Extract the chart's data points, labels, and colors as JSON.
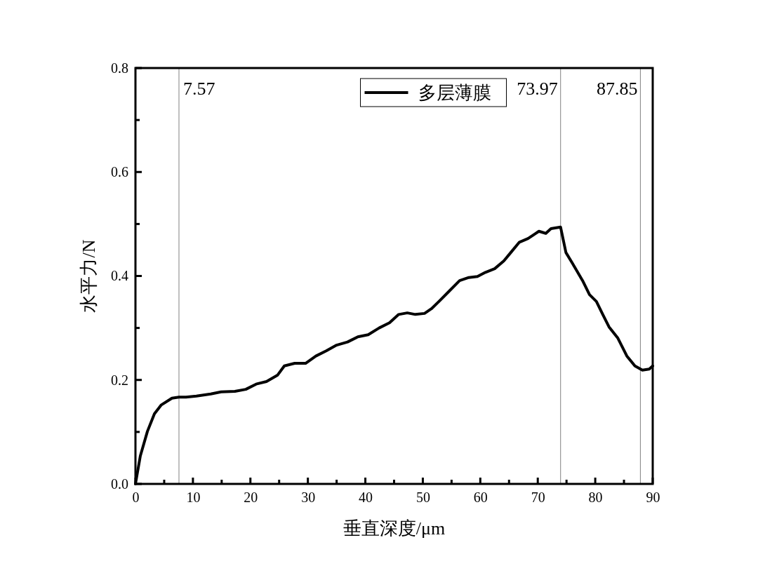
{
  "chart_data": {
    "type": "line",
    "xlabel": "垂直深度/μm",
    "ylabel": "水平力/N",
    "xlim": [
      0,
      90
    ],
    "ylim": [
      0,
      0.8
    ],
    "xticks": [
      0,
      {
        "value": 5,
        "label": null
      },
      10,
      {
        "value": 15,
        "label": null
      },
      20,
      {
        "value": 25,
        "label": null
      },
      30,
      {
        "value": 35,
        "label": null
      },
      40,
      {
        "value": 45,
        "label": null
      },
      50,
      {
        "value": 55,
        "label": null
      },
      60,
      {
        "value": 65,
        "label": null
      },
      70,
      {
        "value": 75,
        "label": null
      },
      80,
      {
        "value": 85,
        "label": null
      },
      90
    ],
    "yticks": [
      {
        "value": 0,
        "label": "0.0"
      },
      {
        "value": 0.1,
        "label": null
      },
      0.2,
      {
        "value": 0.3,
        "label": null
      },
      0.4,
      {
        "value": 0.5,
        "label": null
      },
      0.6,
      {
        "value": 0.7,
        "label": null
      },
      0.8
    ],
    "grid": false,
    "legend": "top",
    "line_style": "solid",
    "marker": "none",
    "x": [
      0,
      0.85,
      2.08,
      3.3,
      4.5,
      6.35,
      7.57,
      8.8,
      10.6,
      13.1,
      14.9,
      17.3,
      19.2,
      21.0,
      22.8,
      24.7,
      25.9,
      27.7,
      29.6,
      31.4,
      33.2,
      35.0,
      36.9,
      38.7,
      40.5,
      42.4,
      44.2,
      45.8,
      47.3,
      48.7,
      50.3,
      51.5,
      52.8,
      54.6,
      56.4,
      58.0,
      59.5,
      60.9,
      62.5,
      64.1,
      65.3,
      66.8,
      68.3,
      70.2,
      71.4,
      72.3,
      73.97,
      74.9,
      76.0,
      77.8,
      79.0,
      80.2,
      81.4,
      82.4,
      83.9,
      85.5,
      86.9,
      88.2,
      89.4,
      90
    ],
    "series": [
      {
        "name": "多层薄膜",
        "color": "#000000",
        "values": [
          0,
          0.054,
          0.101,
          0.135,
          0.152,
          0.165,
          0.167,
          0.167,
          0.169,
          0.173,
          0.177,
          0.178,
          0.182,
          0.192,
          0.197,
          0.209,
          0.227,
          0.232,
          0.232,
          0.246,
          0.256,
          0.267,
          0.273,
          0.283,
          0.287,
          0.3,
          0.31,
          0.326,
          0.329,
          0.326,
          0.328,
          0.337,
          0.351,
          0.371,
          0.391,
          0.397,
          0.399,
          0.407,
          0.414,
          0.429,
          0.445,
          0.465,
          0.472,
          0.486,
          0.482,
          0.491,
          0.494,
          0.445,
          0.425,
          0.391,
          0.364,
          0.351,
          0.324,
          0.302,
          0.281,
          0.246,
          0.227,
          0.219,
          0.221,
          0.227
        ]
      }
    ],
    "ref_lines": [
      {
        "axis": "x",
        "value": 7.57,
        "label": "7.57",
        "color": "#808080"
      },
      {
        "axis": "x",
        "value": 73.97,
        "label": "73.97",
        "color": "#808080"
      },
      {
        "axis": "x",
        "value": 87.85,
        "label": "87.85",
        "color": "#808080"
      }
    ]
  }
}
